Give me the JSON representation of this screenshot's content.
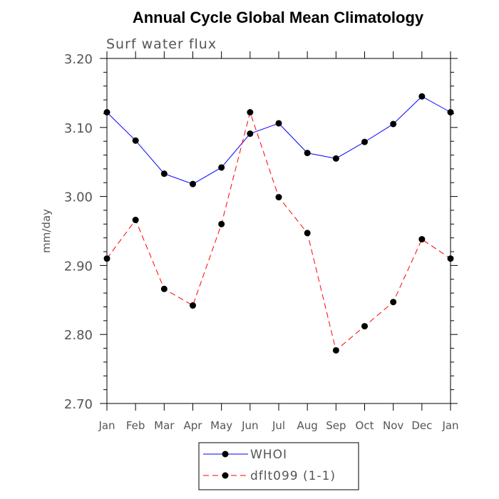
{
  "chart_data": {
    "type": "line",
    "title": "Annual Cycle Global Mean Climatology",
    "subtitle": "Surf water flux",
    "xlabel": "",
    "ylabel": "mm/day",
    "categories": [
      "Jan",
      "Feb",
      "Mar",
      "Apr",
      "May",
      "Jun",
      "Jul",
      "Aug",
      "Sep",
      "Oct",
      "Nov",
      "Dec",
      "Jan"
    ],
    "ylim": [
      2.7,
      3.2
    ],
    "yticks": [
      "2.70",
      "2.80",
      "2.90",
      "3.00",
      "3.10",
      "3.20"
    ],
    "legend_position": "bottom-center",
    "grid": false,
    "series": [
      {
        "name": "WHOI",
        "color": "#0000ff",
        "style": "solid",
        "values": [
          3.122,
          3.081,
          3.033,
          3.018,
          3.042,
          3.091,
          3.106,
          3.063,
          3.055,
          3.079,
          3.105,
          3.145,
          3.122
        ]
      },
      {
        "name": "dflt099 (1-1)",
        "color": "#ff0000",
        "style": "dashed",
        "values": [
          2.91,
          2.966,
          2.866,
          2.842,
          2.96,
          3.122,
          2.999,
          2.947,
          2.777,
          2.812,
          2.847,
          2.938,
          2.91
        ]
      }
    ]
  }
}
